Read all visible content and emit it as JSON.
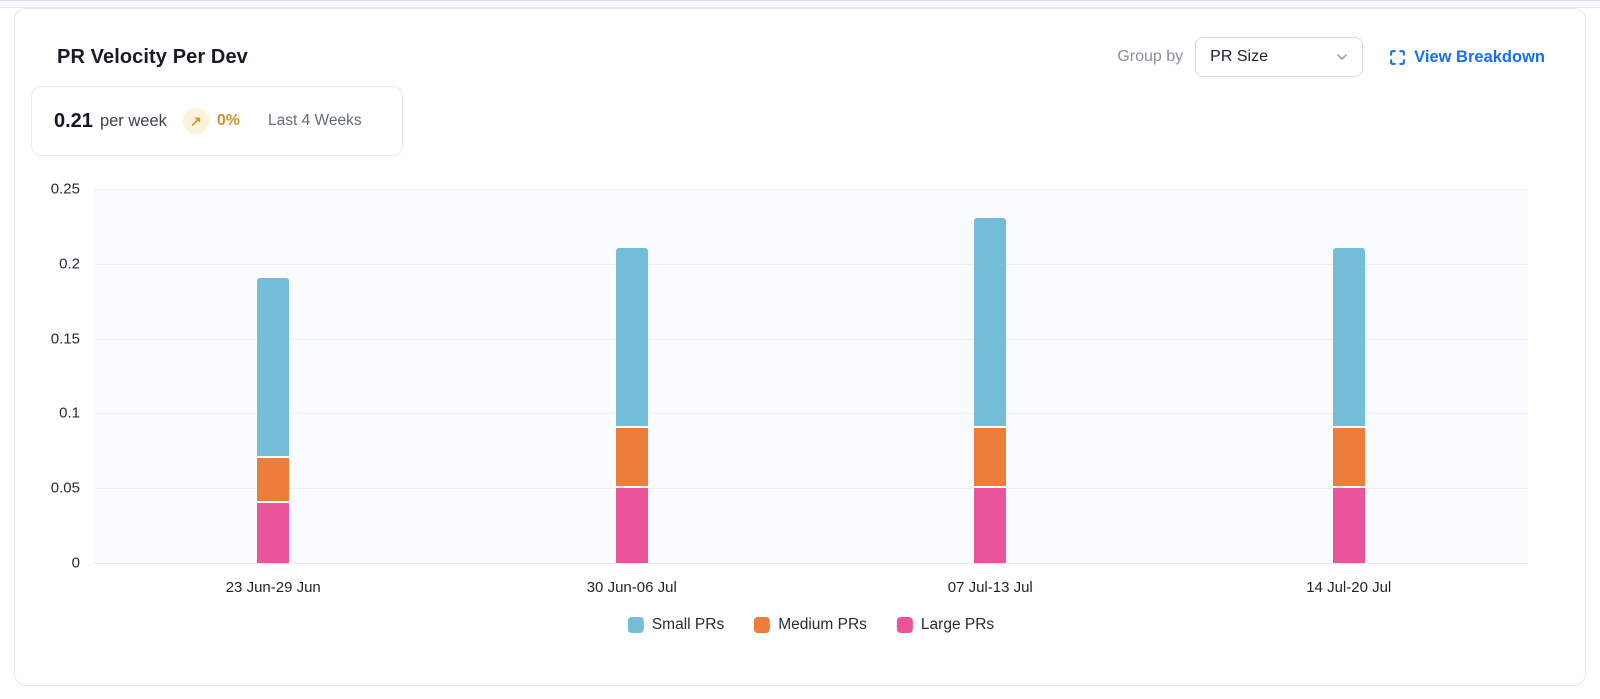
{
  "header": {
    "title": "PR Velocity Per Dev",
    "group_by_label": "Group by",
    "group_by_value": "PR Size",
    "view_breakdown_label": "View Breakdown"
  },
  "summary": {
    "value": "0.21",
    "unit": "per week",
    "trend_icon": "arrow-up-right",
    "trend_percent": "0%",
    "period": "Last 4 Weeks"
  },
  "colors": {
    "link_blue": "#1a6ff0",
    "trend_amber": "#c9952a",
    "trend_badge_bg": "#fcf3da",
    "plot_background": "#fafbfe",
    "gridline": "#edeff4"
  },
  "chart_data": {
    "type": "bar",
    "stacked": true,
    "title": "PR Velocity Per Dev",
    "categories": [
      "23 Jun-29 Jun",
      "30 Jun-06 Jul",
      "07 Jul-13 Jul",
      "14 Jul-20 Jul"
    ],
    "series": [
      {
        "name": "Small PRs",
        "color": "#74bdd9",
        "values": [
          0.12,
          0.12,
          0.14,
          0.12
        ]
      },
      {
        "name": "Medium PRs",
        "color": "#ed7d3b",
        "values": [
          0.03,
          0.04,
          0.04,
          0.04
        ]
      },
      {
        "name": "Large PRs",
        "color": "#e9549a",
        "values": [
          0.04,
          0.05,
          0.05,
          0.05
        ]
      }
    ],
    "stack_order_bottom_to_top": [
      "Large PRs",
      "Medium PRs",
      "Small PRs"
    ],
    "totals": [
      0.19,
      0.21,
      0.23,
      0.21
    ],
    "ylim": [
      0,
      0.25
    ],
    "yticks": [
      0,
      0.05,
      0.1,
      0.15,
      0.2,
      0.25
    ],
    "ytick_labels": [
      "0",
      "0.05",
      "0.1",
      "0.15",
      "0.2",
      "0.25"
    ],
    "xlabel": "",
    "ylabel": "",
    "grid": true,
    "legend_position": "bottom"
  }
}
